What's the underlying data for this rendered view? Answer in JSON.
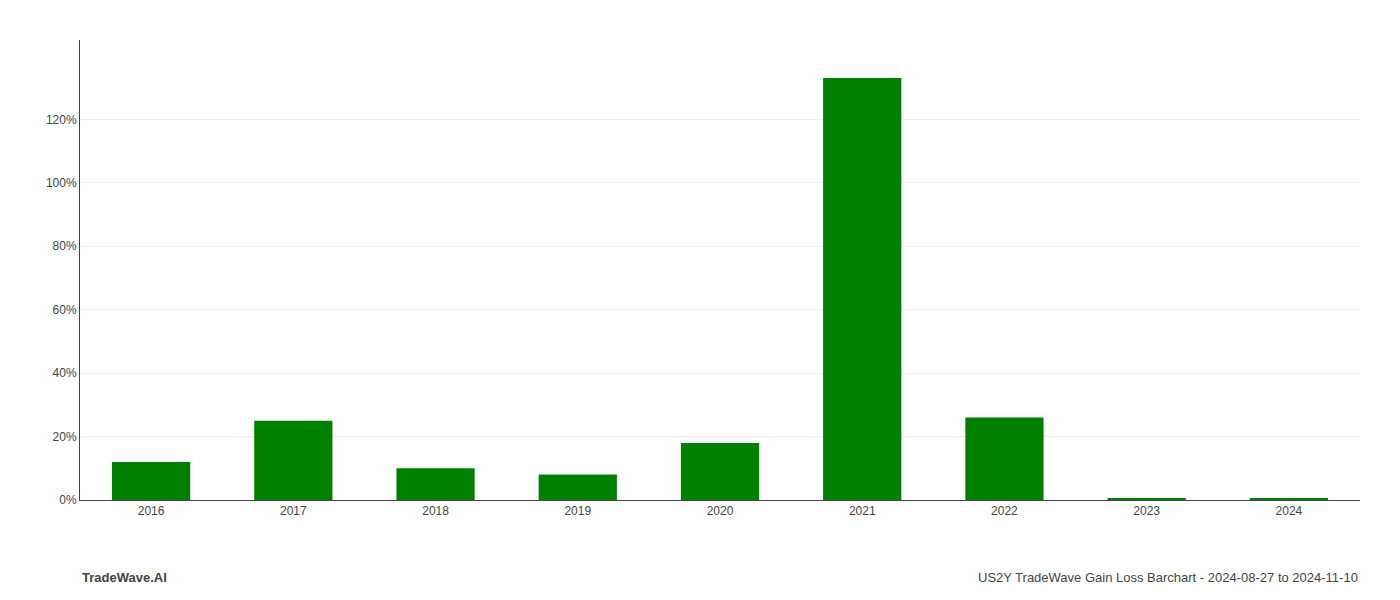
{
  "chart_data": {
    "type": "bar",
    "categories": [
      "2016",
      "2017",
      "2018",
      "2019",
      "2020",
      "2021",
      "2022",
      "2023",
      "2024"
    ],
    "values": [
      0.12,
      0.25,
      0.1,
      0.08,
      0.18,
      1.33,
      0.26,
      0.005,
      0.005
    ],
    "color": "#008000",
    "ylim": [
      0,
      1.45
    ],
    "yticks": [
      {
        "value": 0.0,
        "label": "0%"
      },
      {
        "value": 0.2,
        "label": "20%"
      },
      {
        "value": 0.4,
        "label": "40%"
      },
      {
        "value": 0.6,
        "label": "60%"
      },
      {
        "value": 0.8,
        "label": "80%"
      },
      {
        "value": 1.0,
        "label": "100%"
      },
      {
        "value": 1.2,
        "label": "120%"
      }
    ],
    "grid": true,
    "annotations": [
      "TradeWave.AI",
      "US2Y TradeWave Gain Loss Barchart - 2024-08-27 to 2024-11-10"
    ]
  }
}
